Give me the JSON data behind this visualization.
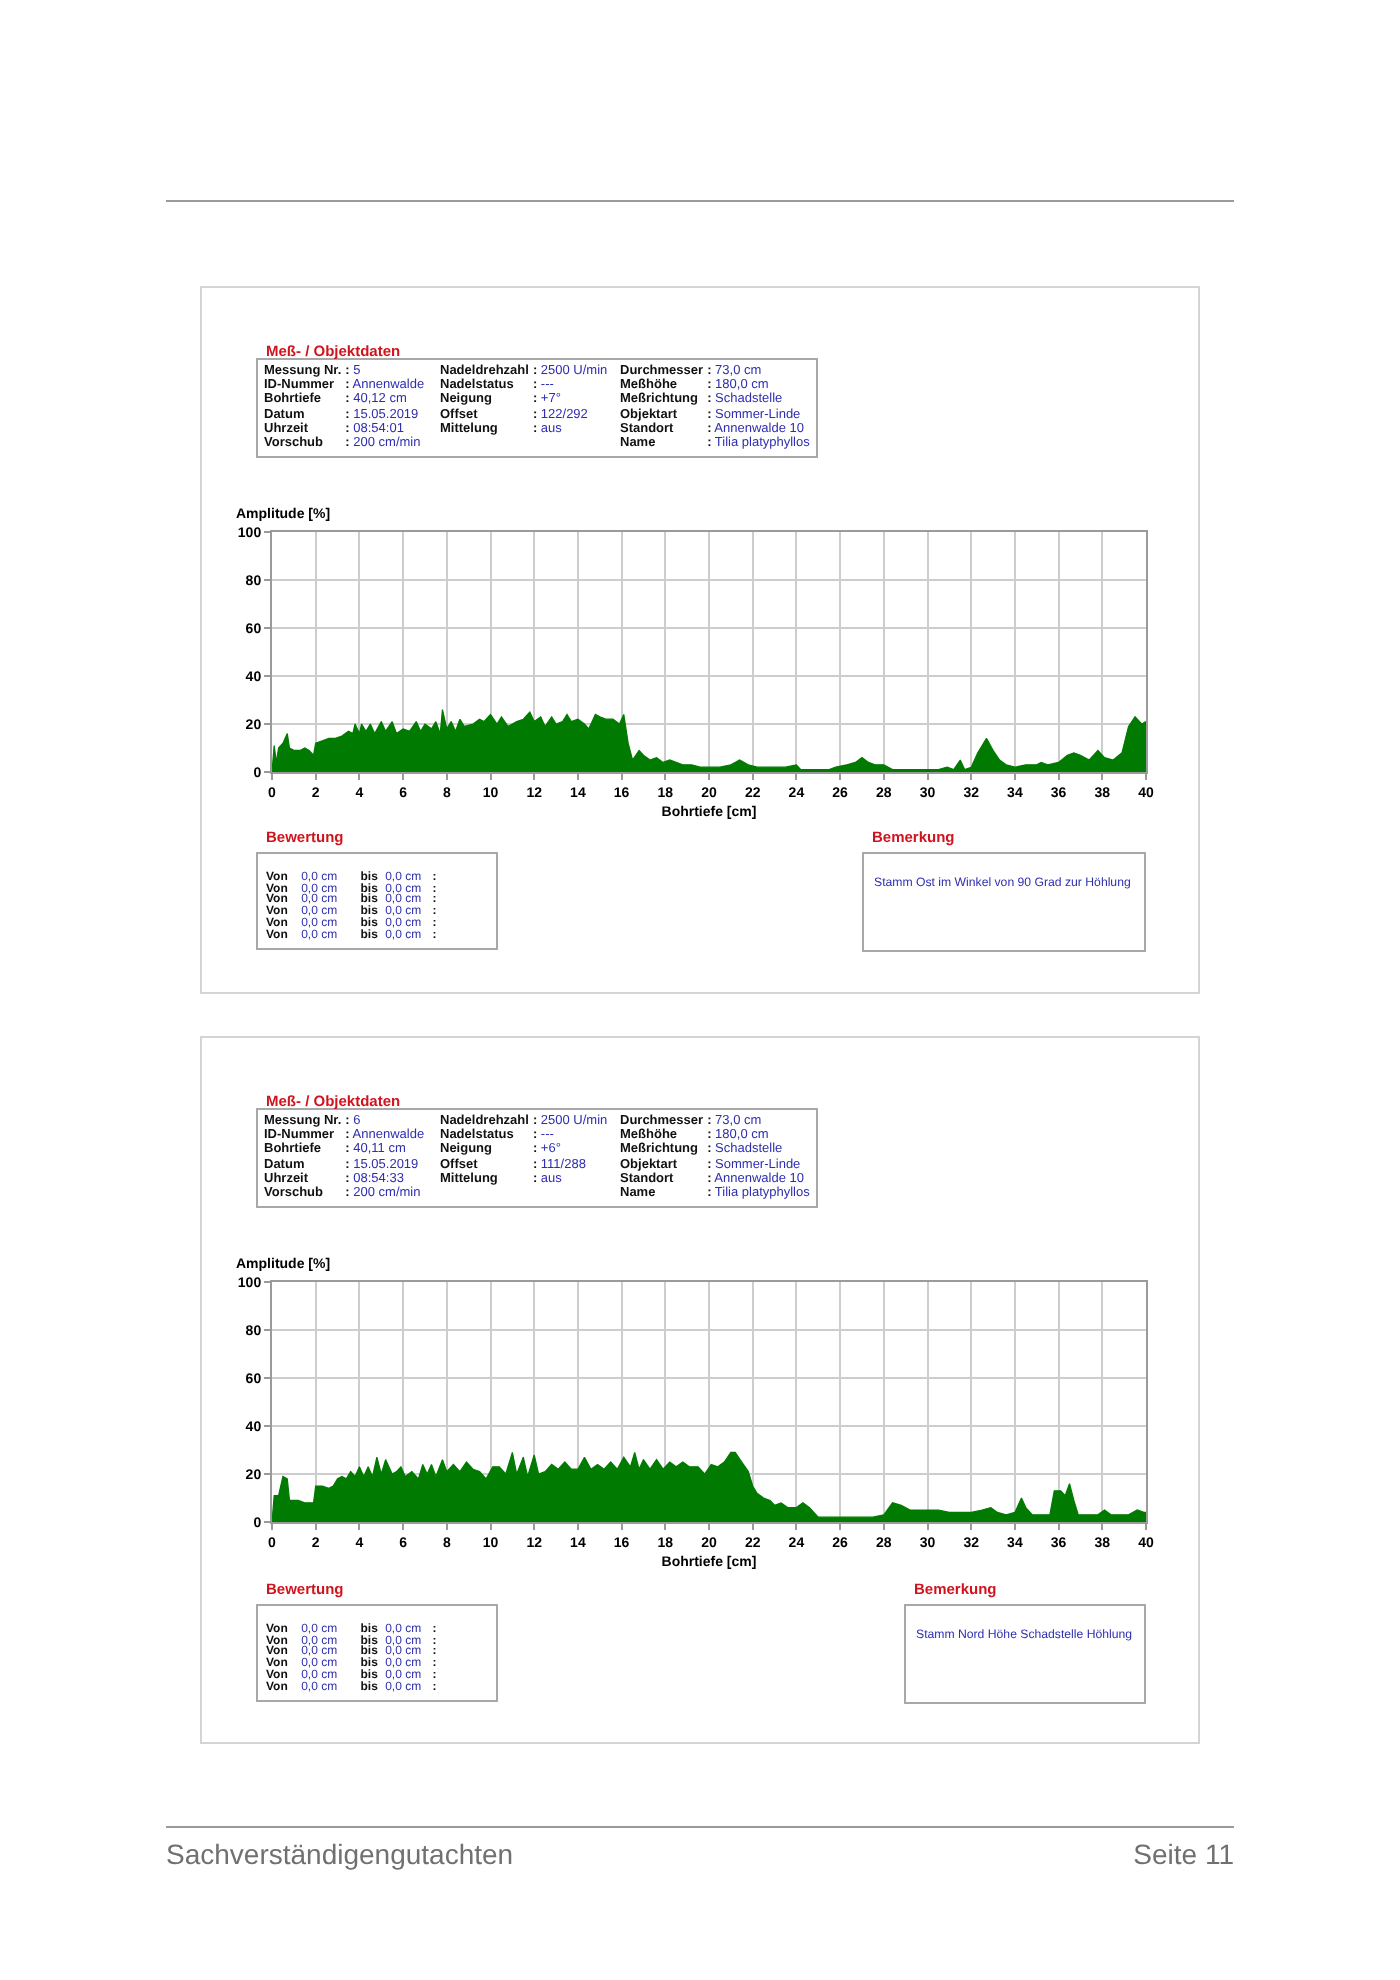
{
  "chart_data": [
    {
      "type": "other",
      "title": "Meß- / Objektdaten",
      "annotations": [
        "Messung Nr. : 5",
        "ID-Nummer : Annenwalde",
        "Bohrtiefe : 40,12 cm",
        "Datum : 15.05.2019",
        "Uhrzeit : 08:54:01",
        "Vorschub : 200 cm/min"
      ]
    },
    {
      "type": "other",
      "annotations": [
        "Nadeldrehzahl : 2500 U/min",
        "Nadelstatus : ---",
        "Neigung : +7°",
        "Offset : 122/292",
        "Mittelung : aus"
      ]
    },
    {
      "type": "other",
      "annotations": [
        "Durchmesser : 73,0 cm",
        "Meßhöhe : 180,0 cm",
        "Meßrichtung : Schadstelle",
        "Objektart : Sommer-Linde",
        "Standort : Annenwalde 10",
        "Name : Tilia platyphyllos"
      ]
    },
    {
      "type": "area",
      "ylabel": "Amplitude [%]",
      "xlabel": "Bohrtiefe [cm]",
      "color": "#007a00",
      "x": [
        0,
        0.1,
        0.2,
        0.3,
        0.5,
        0.7,
        0.8,
        1.0,
        1.3,
        1.5,
        1.7,
        1.9,
        2.0,
        2.3,
        2.6,
        2.9,
        3.2,
        3.5,
        3.7,
        3.8,
        4.0,
        4.1,
        4.3,
        4.5,
        4.7,
        5.0,
        5.2,
        5.5,
        5.7,
        6.0,
        6.3,
        6.6,
        6.8,
        7.0,
        7.3,
        7.5,
        7.7,
        7.8,
        8.0,
        8.2,
        8.4,
        8.6,
        8.8,
        9.2,
        9.5,
        9.7,
        10.0,
        10.3,
        10.5,
        10.8,
        11.2,
        11.5,
        11.8,
        12.0,
        12.3,
        12.5,
        12.8,
        13.0,
        13.3,
        13.5,
        13.7,
        14.0,
        14.3,
        14.5,
        14.8,
        15.0,
        15.3,
        15.6,
        15.9,
        16.1,
        16.3,
        16.5,
        16.8,
        17.0,
        17.3,
        17.6,
        17.9,
        18.2,
        18.5,
        18.8,
        19.2,
        19.6,
        20.0,
        20.5,
        21.0,
        21.4,
        21.8,
        22.2,
        22.8,
        23.5,
        24.0,
        24.2,
        24.5,
        25.0,
        25.5,
        25.8,
        26.3,
        26.7,
        27.0,
        27.3,
        27.6,
        28.0,
        28.4,
        29.0,
        29.5,
        30.0,
        30.5,
        30.9,
        31.2,
        31.5,
        31.7,
        32.0,
        32.3,
        32.7,
        33.0,
        33.3,
        33.6,
        34.0,
        34.5,
        35.0,
        35.2,
        35.5,
        36.0,
        36.4,
        36.7,
        37.0,
        37.4,
        37.8,
        38.1,
        38.5,
        38.9,
        39.2,
        39.5,
        39.8,
        40.0
      ],
      "values": [
        0,
        11,
        4,
        10,
        12,
        16,
        10,
        9,
        9,
        10,
        9,
        7,
        12,
        13,
        14,
        14,
        15,
        17,
        16,
        20,
        16,
        20,
        17,
        20,
        16,
        21,
        17,
        21,
        16,
        18,
        17,
        21,
        17,
        20,
        18,
        21,
        16,
        26,
        18,
        21,
        17,
        22,
        19,
        20,
        22,
        21,
        24,
        20,
        23,
        19,
        21,
        22,
        25,
        21,
        23,
        19,
        23,
        20,
        21,
        24,
        21,
        22,
        20,
        18,
        24,
        23,
        22,
        22,
        20,
        24,
        12,
        5,
        9,
        7,
        5,
        6,
        4,
        5,
        4,
        3,
        3,
        2,
        2,
        2,
        3,
        5,
        3,
        2,
        2,
        2,
        3,
        1,
        1,
        1,
        1,
        2,
        3,
        4,
        6,
        4,
        3,
        3,
        1,
        1,
        1,
        1,
        1,
        2,
        1,
        5,
        1,
        2,
        8,
        14,
        9,
        5,
        3,
        2,
        3,
        3,
        4,
        3,
        4,
        7,
        8,
        7,
        5,
        9,
        6,
        5,
        8,
        19,
        23,
        20,
        21
      ],
      "xlim": [
        0,
        40
      ],
      "xticks": [
        0,
        2,
        4,
        6,
        8,
        10,
        12,
        14,
        16,
        18,
        20,
        22,
        24,
        26,
        28,
        30,
        32,
        34,
        36,
        38,
        40
      ],
      "ylim": [
        0,
        100
      ],
      "yticks": [
        0,
        20,
        40,
        60,
        80,
        100
      ],
      "grid": true
    },
    {
      "type": "other",
      "title": "Bewertung",
      "annotations": [
        "Von 0,0 cm bis 0,0 cm :",
        "Von 0,0 cm bis 0,0 cm :",
        "Von 0,0 cm bis 0,0 cm :",
        "Von 0,0 cm bis 0,0 cm :",
        "Von 0,0 cm bis 0,0 cm :",
        "Von 0,0 cm bis 0,0 cm :"
      ]
    },
    {
      "type": "other",
      "title": "Bemerkung",
      "annotations": [
        "Stamm Ost im Winkel von 90 Grad zur Höhlung"
      ]
    },
    {
      "type": "other",
      "title": "Meß- / Objektdaten",
      "annotations": [
        "Messung Nr. : 6",
        "ID-Nummer : Annenwalde",
        "Bohrtiefe : 40,11 cm",
        "Datum : 15.05.2019",
        "Uhrzeit : 08:54:33",
        "Vorschub : 200 cm/min"
      ]
    },
    {
      "type": "other",
      "annotations": [
        "Nadeldrehzahl : 2500 U/min",
        "Nadelstatus : ---",
        "Neigung : +6°",
        "Offset : 111/288",
        "Mittelung : aus"
      ]
    },
    {
      "type": "other",
      "annotations": [
        "Durchmesser : 73,0 cm",
        "Meßhöhe : 180,0 cm",
        "Meßrichtung : Schadstelle",
        "Objektart : Sommer-Linde",
        "Standort : Annenwalde 10",
        "Name : Tilia platyphyllos"
      ]
    },
    {
      "type": "area",
      "ylabel": "Amplitude [%]",
      "xlabel": "Bohrtiefe [cm]",
      "color": "#007a00",
      "x": [
        0,
        0.1,
        0.3,
        0.5,
        0.7,
        0.8,
        1.2,
        1.5,
        1.9,
        2.0,
        2.3,
        2.6,
        2.8,
        3.0,
        3.2,
        3.4,
        3.6,
        3.8,
        4.0,
        4.2,
        4.4,
        4.6,
        4.8,
        5.0,
        5.2,
        5.5,
        5.7,
        5.9,
        6.1,
        6.4,
        6.7,
        6.9,
        7.1,
        7.3,
        7.5,
        7.8,
        8.0,
        8.3,
        8.6,
        8.9,
        9.2,
        9.5,
        9.8,
        10.1,
        10.4,
        10.7,
        11.0,
        11.2,
        11.5,
        11.7,
        12.0,
        12.2,
        12.5,
        12.8,
        13.1,
        13.4,
        13.7,
        14.0,
        14.3,
        14.6,
        14.9,
        15.2,
        15.5,
        15.8,
        16.1,
        16.4,
        16.6,
        16.8,
        17.0,
        17.3,
        17.6,
        17.9,
        18.2,
        18.5,
        18.8,
        19.1,
        19.5,
        19.8,
        20.1,
        20.4,
        20.7,
        21.0,
        21.2,
        21.5,
        21.8,
        22.0,
        22.2,
        22.5,
        22.8,
        23.0,
        23.3,
        23.6,
        24.0,
        24.3,
        24.6,
        25.0,
        25.5,
        26.0,
        26.5,
        27.0,
        27.5,
        28.0,
        28.4,
        28.8,
        29.2,
        29.6,
        30.0,
        30.5,
        31.0,
        31.5,
        32.0,
        32.5,
        32.9,
        33.2,
        33.6,
        34.0,
        34.3,
        34.5,
        34.8,
        35.2,
        35.6,
        35.8,
        36.1,
        36.3,
        36.5,
        36.7,
        36.9,
        37.3,
        37.8,
        38.1,
        38.4,
        38.8,
        39.2,
        39.6,
        39.9,
        40.0
      ],
      "values": [
        0,
        11,
        11,
        19,
        18,
        9,
        9,
        8,
        8,
        15,
        15,
        14,
        15,
        18,
        19,
        18,
        21,
        19,
        23,
        19,
        23,
        19,
        27,
        20,
        26,
        20,
        21,
        23,
        19,
        21,
        18,
        24,
        20,
        24,
        19,
        26,
        21,
        24,
        21,
        25,
        22,
        21,
        18,
        23,
        23,
        20,
        29,
        20,
        27,
        19,
        28,
        20,
        21,
        24,
        22,
        25,
        22,
        22,
        27,
        22,
        24,
        22,
        25,
        22,
        27,
        23,
        29,
        22,
        26,
        22,
        26,
        22,
        25,
        23,
        25,
        23,
        23,
        20,
        24,
        23,
        25,
        29,
        29,
        25,
        21,
        15,
        12,
        10,
        9,
        7,
        8,
        6,
        6,
        8,
        6,
        2,
        2,
        2,
        2,
        2,
        2,
        3,
        8,
        7,
        5,
        5,
        5,
        5,
        4,
        4,
        4,
        5,
        6,
        4,
        3,
        4,
        10,
        6,
        3,
        3,
        3,
        13,
        13,
        11,
        16,
        9,
        3,
        3,
        3,
        5,
        3,
        3,
        3,
        5,
        4,
        4
      ],
      "xlim": [
        0,
        40
      ],
      "xticks": [
        0,
        2,
        4,
        6,
        8,
        10,
        12,
        14,
        16,
        18,
        20,
        22,
        24,
        26,
        28,
        30,
        32,
        34,
        36,
        38,
        40
      ],
      "ylim": [
        0,
        100
      ],
      "yticks": [
        0,
        20,
        40,
        60,
        80,
        100
      ],
      "grid": true
    },
    {
      "type": "other",
      "title": "Bewertung",
      "annotations": [
        "Von 0,0 cm bis 0,0 cm :",
        "Von 0,0 cm bis 0,0 cm :",
        "Von 0,0 cm bis 0,0 cm :",
        "Von 0,0 cm bis 0,0 cm :",
        "Von 0,0 cm bis 0,0 cm :",
        "Von 0,0 cm bis 0,0 cm :"
      ]
    },
    {
      "type": "other",
      "title": "Bemerkung",
      "annotations": [
        "Stamm Nord Höhe Schadstelle Höhlung"
      ]
    },
    {
      "type": "other",
      "annotations": [
        "Sachverständigengutachten",
        "Seite 11"
      ]
    }
  ]
}
